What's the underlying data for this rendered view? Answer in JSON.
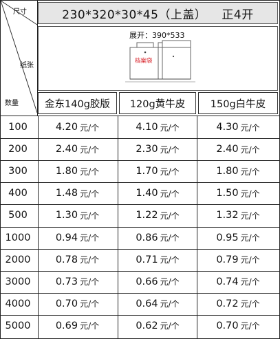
{
  "header": {
    "size_label": "尺寸",
    "paper_label": "纸张",
    "qty_label": "数量",
    "spec": "230*320*30*45（上盖）",
    "format": "正4开"
  },
  "preview": {
    "unfold_text": "展开：390*533",
    "bag_text": "档案袋",
    "bag_text_color": "#d9272e"
  },
  "columns": [
    "金东140g胶版",
    "120g黄牛皮",
    "150g白牛皮"
  ],
  "unit": "元/个",
  "rows": [
    {
      "qty": "100",
      "prices": [
        "4.20",
        "4.10",
        "4.30"
      ]
    },
    {
      "qty": "200",
      "prices": [
        "2.40",
        "2.30",
        "2.40"
      ]
    },
    {
      "qty": "300",
      "prices": [
        "1.80",
        "1.70",
        "1.80"
      ]
    },
    {
      "qty": "400",
      "prices": [
        "1.48",
        "1.40",
        "1.50"
      ]
    },
    {
      "qty": "500",
      "prices": [
        "1.30",
        "1.22",
        "1.32"
      ]
    },
    {
      "qty": "1000",
      "prices": [
        "0.94",
        "0.86",
        "0.95"
      ]
    },
    {
      "qty": "2000",
      "prices": [
        "0.78",
        "0.71",
        "0.79"
      ]
    },
    {
      "qty": "3000",
      "prices": [
        "0.73",
        "0.66",
        "0.74"
      ]
    },
    {
      "qty": "4000",
      "prices": [
        "0.70",
        "0.64",
        "0.72"
      ]
    },
    {
      "qty": "5000",
      "prices": [
        "0.69",
        "0.62",
        "0.70"
      ]
    }
  ]
}
